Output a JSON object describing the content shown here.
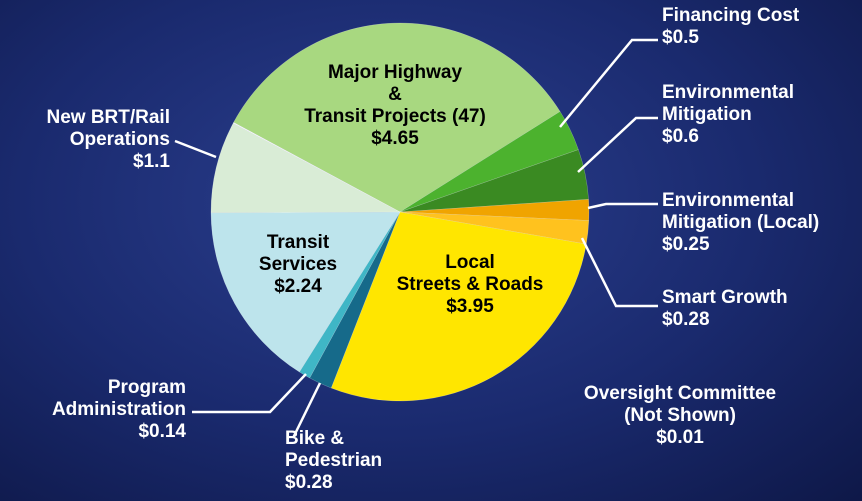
{
  "chart_data": {
    "type": "pie",
    "categories": [
      "Major Highway\n&\nTransit Projects (47)",
      "Financing Cost",
      "Environmental\nMitigation",
      "Environmental\nMitigation (Local)",
      "Smart Growth",
      "Local\nStreets & Roads",
      "Bike &\nPedestrian",
      "Program\nAdministration",
      "Transit\nServices",
      "New BRT/Rail\nOperations",
      "Oversight Committee\n(Not Shown)"
    ],
    "values": [
      4.65,
      0.5,
      0.6,
      0.25,
      0.28,
      3.95,
      0.28,
      0.14,
      2.24,
      1.1,
      0.01
    ],
    "value_labels": [
      "$4.65",
      "$0.5",
      "$0.6",
      "$0.25",
      "$0.28",
      "$3.95",
      "$0.28",
      "$0.14",
      "$2.24",
      "$1.1",
      "$0.01"
    ],
    "colors": [
      "#a8d880",
      "#4cb22e",
      "#3a8a22",
      "#f0a400",
      "#ffc21e",
      "#ffe600",
      "#166a8a",
      "#3fb6c6",
      "#bde4ec",
      "#d9ecd6",
      "#ffffff"
    ]
  }
}
